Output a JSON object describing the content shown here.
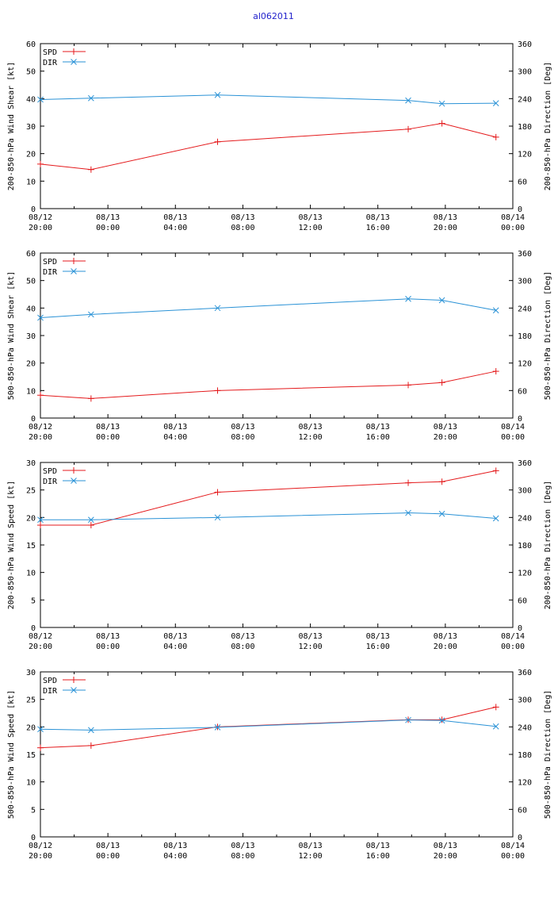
{
  "figure_title": "al062011",
  "colors": {
    "spd": "#e41a1c",
    "dir": "#2a92d6",
    "frame": "#000000"
  },
  "chart_data": [
    {
      "type": "line",
      "ylabel": "200-850-hPa Wind Shear [kt]",
      "y2label": "200-850-hPa Direction [Deg]",
      "ylim": [
        0,
        60
      ],
      "yticks": [
        "0",
        "10",
        "20",
        "30",
        "40",
        "50",
        "60"
      ],
      "y2lim": [
        0,
        360
      ],
      "y2ticks": [
        "0",
        "60",
        "120",
        "180",
        "240",
        "300",
        "360"
      ],
      "xlim": [
        0,
        28
      ],
      "xticks": [
        {
          "x": 0,
          "date": "08/12",
          "time": "20:00"
        },
        {
          "x": 4,
          "date": "08/13",
          "time": "00:00"
        },
        {
          "x": 8,
          "date": "08/13",
          "time": "04:00"
        },
        {
          "x": 12,
          "date": "08/13",
          "time": "08:00"
        },
        {
          "x": 16,
          "date": "08/13",
          "time": "12:00"
        },
        {
          "x": 20,
          "date": "08/13",
          "time": "16:00"
        },
        {
          "x": 24,
          "date": "08/13",
          "time": "20:00"
        },
        {
          "x": 28,
          "date": "08/14",
          "time": "00:00"
        }
      ],
      "x": [
        0,
        3,
        10.5,
        21.8,
        23.8,
        27
      ],
      "series": [
        {
          "name": "SPD",
          "axis": "left",
          "values": [
            16.2,
            14.2,
            24.3,
            28.9,
            31.0,
            26.0
          ]
        },
        {
          "name": "DIR",
          "axis": "right",
          "values": [
            238,
            241,
            248,
            236,
            229,
            230
          ]
        }
      ]
    },
    {
      "type": "line",
      "ylabel": "500-850-hPa Wind Shear [kt]",
      "y2label": "500-850-hPa Direction [Deg]",
      "ylim": [
        0,
        60
      ],
      "yticks": [
        "0",
        "10",
        "20",
        "30",
        "40",
        "50",
        "60"
      ],
      "y2lim": [
        0,
        360
      ],
      "y2ticks": [
        "0",
        "60",
        "120",
        "180",
        "240",
        "300",
        "360"
      ],
      "xlim": [
        0,
        28
      ],
      "xticks": [
        {
          "x": 0,
          "date": "08/12",
          "time": "20:00"
        },
        {
          "x": 4,
          "date": "08/13",
          "time": "00:00"
        },
        {
          "x": 8,
          "date": "08/13",
          "time": "04:00"
        },
        {
          "x": 12,
          "date": "08/13",
          "time": "08:00"
        },
        {
          "x": 16,
          "date": "08/13",
          "time": "12:00"
        },
        {
          "x": 20,
          "date": "08/13",
          "time": "16:00"
        },
        {
          "x": 24,
          "date": "08/13",
          "time": "20:00"
        },
        {
          "x": 28,
          "date": "08/14",
          "time": "00:00"
        }
      ],
      "x": [
        0,
        3,
        10.5,
        21.8,
        23.8,
        27
      ],
      "series": [
        {
          "name": "SPD",
          "axis": "left",
          "values": [
            8.3,
            7.1,
            10.0,
            12.0,
            12.9,
            17.0
          ]
        },
        {
          "name": "DIR",
          "axis": "right",
          "values": [
            219,
            226,
            240,
            260,
            257,
            235
          ]
        }
      ]
    },
    {
      "type": "line",
      "ylabel": "200-850-hPa Wind Speed [kt]",
      "y2label": "200-850-hPa Direction [Deg]",
      "ylim": [
        0,
        30
      ],
      "yticks": [
        "0",
        "5",
        "10",
        "15",
        "20",
        "25",
        "30"
      ],
      "y2lim": [
        0,
        360
      ],
      "y2ticks": [
        "0",
        "60",
        "120",
        "180",
        "240",
        "300",
        "360"
      ],
      "xlim": [
        0,
        28
      ],
      "xticks": [
        {
          "x": 0,
          "date": "08/12",
          "time": "20:00"
        },
        {
          "x": 4,
          "date": "08/13",
          "time": "00:00"
        },
        {
          "x": 8,
          "date": "08/13",
          "time": "04:00"
        },
        {
          "x": 12,
          "date": "08/13",
          "time": "08:00"
        },
        {
          "x": 16,
          "date": "08/13",
          "time": "12:00"
        },
        {
          "x": 20,
          "date": "08/13",
          "time": "16:00"
        },
        {
          "x": 24,
          "date": "08/13",
          "time": "20:00"
        },
        {
          "x": 28,
          "date": "08/14",
          "time": "00:00"
        }
      ],
      "x": [
        0,
        3,
        10.5,
        21.8,
        23.8,
        27
      ],
      "series": [
        {
          "name": "SPD",
          "axis": "left",
          "values": [
            18.6,
            18.6,
            24.6,
            26.3,
            26.5,
            28.5
          ]
        },
        {
          "name": "DIR",
          "axis": "right",
          "values": [
            235,
            235,
            240,
            250,
            248,
            238
          ]
        }
      ]
    },
    {
      "type": "line",
      "ylabel": "500-850-hPa Wind Speed [kt]",
      "y2label": "500-850-hPa Direction [Deg]",
      "ylim": [
        0,
        30
      ],
      "yticks": [
        "0",
        "5",
        "10",
        "15",
        "20",
        "25",
        "30"
      ],
      "y2lim": [
        0,
        360
      ],
      "y2ticks": [
        "0",
        "60",
        "120",
        "180",
        "240",
        "300",
        "360"
      ],
      "xlim": [
        0,
        28
      ],
      "xticks": [
        {
          "x": 0,
          "date": "08/12",
          "time": "20:00"
        },
        {
          "x": 4,
          "date": "08/13",
          "time": "00:00"
        },
        {
          "x": 8,
          "date": "08/13",
          "time": "04:00"
        },
        {
          "x": 12,
          "date": "08/13",
          "time": "08:00"
        },
        {
          "x": 16,
          "date": "08/13",
          "time": "12:00"
        },
        {
          "x": 20,
          "date": "08/13",
          "time": "16:00"
        },
        {
          "x": 24,
          "date": "08/13",
          "time": "20:00"
        },
        {
          "x": 28,
          "date": "08/14",
          "time": "00:00"
        }
      ],
      "x": [
        0,
        3,
        10.5,
        21.8,
        23.8,
        27
      ],
      "series": [
        {
          "name": "SPD",
          "axis": "left",
          "values": [
            16.2,
            16.6,
            20.0,
            21.3,
            21.3,
            23.6
          ]
        },
        {
          "name": "DIR",
          "axis": "right",
          "values": [
            235,
            233,
            239,
            255,
            254,
            241
          ]
        }
      ]
    }
  ]
}
